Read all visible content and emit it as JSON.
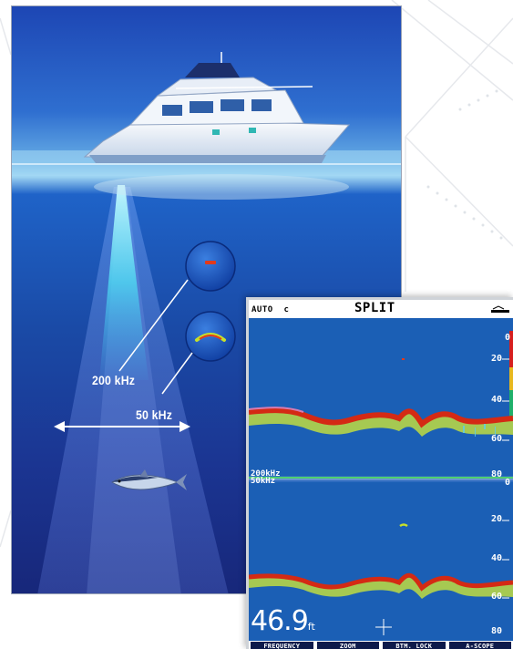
{
  "illustration": {
    "beam_labels": {
      "narrow": "200 kHz",
      "wide": "50 kHz"
    }
  },
  "display": {
    "mode": "AUTO  c",
    "title": "SPLIT",
    "range_icon": "range-scale-icon",
    "depth_scale_top": [
      "0",
      "20",
      "40",
      "60",
      "80"
    ],
    "depth_scale_bottom": [
      "0",
      "20",
      "40",
      "60",
      "80"
    ],
    "top_frequency": "200kHz",
    "bottom_frequency": "50kHz",
    "depth_value": "46.9",
    "depth_unit": "ft",
    "softkeys": [
      "FREQUENCY",
      "ZOOM",
      "BTM. LOCK",
      "A-SCOPE"
    ]
  },
  "colors": {
    "sonar_water": "#1b5fb5",
    "bottom_return": "#d42a14",
    "ocean_deep": "#17277a",
    "beam": "#5fe3f5"
  }
}
